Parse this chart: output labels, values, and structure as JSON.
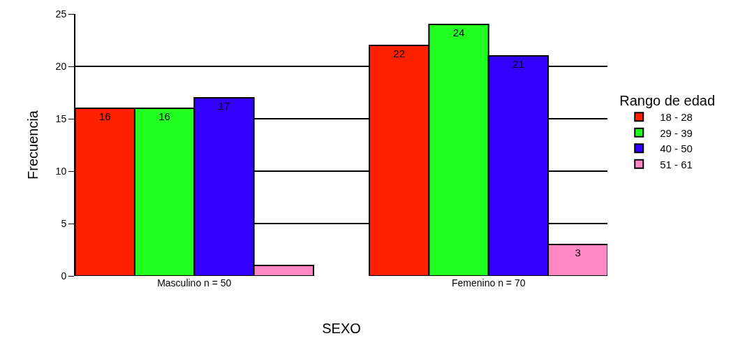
{
  "chart_data": {
    "type": "bar",
    "xlabel": "SEXO",
    "ylabel": "Frecuencia",
    "legend_title": "Rango de edad",
    "categories": [
      "Masculino n = 50",
      "Femenino n = 70"
    ],
    "series": [
      {
        "name": "18 - 28",
        "color": "#ff2000",
        "values": [
          16,
          22
        ],
        "value_labels": [
          "16",
          "22"
        ]
      },
      {
        "name": "29 - 39",
        "color": "#20ff20",
        "values": [
          16,
          24
        ],
        "value_labels": [
          "16",
          "24"
        ]
      },
      {
        "name": "40 - 50",
        "color": "#3300ff",
        "values": [
          17,
          21
        ],
        "value_labels": [
          "17",
          "21"
        ]
      },
      {
        "name": "51 - 61",
        "color": "#ff88c4",
        "values": [
          1,
          3
        ],
        "value_labels": [
          null,
          "3"
        ]
      }
    ],
    "ylim": [
      0,
      25
    ],
    "yticks": [
      0,
      5,
      10,
      15,
      20,
      25
    ],
    "grid": "y",
    "legend": "right"
  }
}
